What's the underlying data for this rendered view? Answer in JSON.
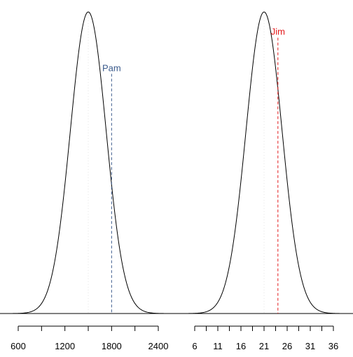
{
  "chart_data": [
    {
      "type": "line",
      "curve": "normal-density",
      "mean": 1500,
      "sd": 230,
      "xlim": [
        600,
        2400
      ],
      "ticks": [
        600,
        900,
        1200,
        1500,
        1800,
        2100,
        2400
      ],
      "tick_labels": [
        "600",
        "1200",
        "1800",
        "2400"
      ],
      "tick_label_values": [
        600,
        1200,
        1800,
        2400
      ],
      "marker": {
        "label": "Pam",
        "value": 1800,
        "color": "#3b5b8c",
        "label_level": 0.79
      },
      "mean_line_color": "#e6e6e6"
    },
    {
      "type": "line",
      "curve": "normal-density",
      "mean": 21,
      "sd": 3.9,
      "xlim": [
        6,
        36
      ],
      "ticks": [
        6,
        8.5,
        11,
        13.5,
        16,
        18.5,
        21,
        23.5,
        26,
        28.5,
        31,
        33.5,
        36
      ],
      "tick_labels": [
        "6",
        "11",
        "16",
        "21",
        "26",
        "31",
        "36"
      ],
      "tick_label_values": [
        6,
        11,
        16,
        21,
        26,
        31,
        36
      ],
      "marker": {
        "label": "Jim",
        "value": 24,
        "color": "#e31a1c",
        "label_level": 0.91
      },
      "mean_line_color": "#e6e6e6"
    }
  ]
}
